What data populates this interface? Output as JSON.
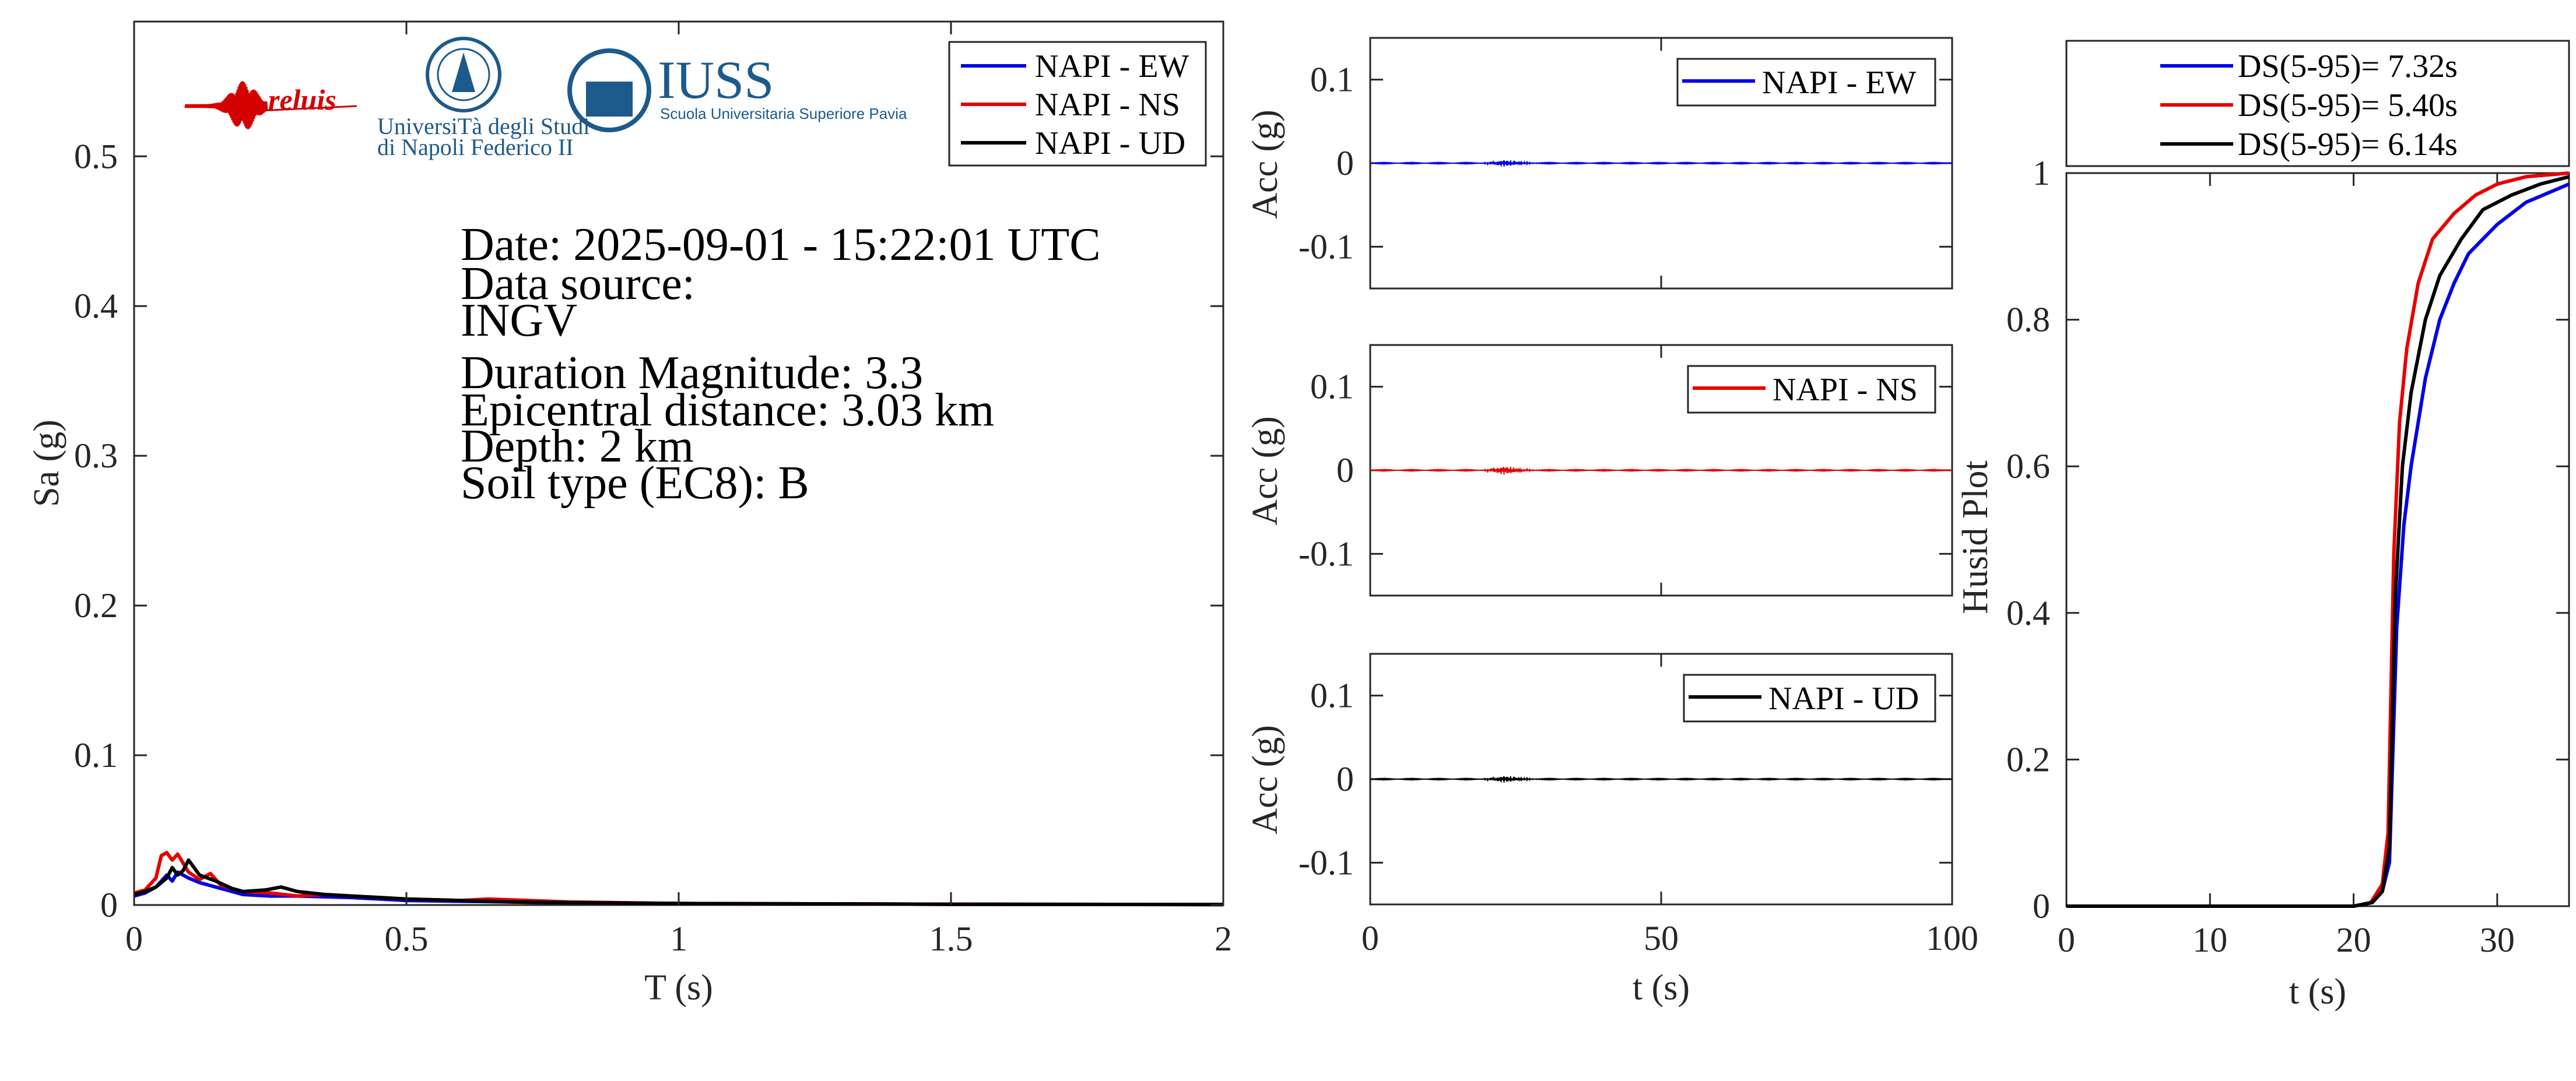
{
  "colors": {
    "ew": "#0000e6",
    "ns": "#e60000",
    "ud": "#000000",
    "axis": "#262626",
    "logo_blue": "#1d5a8c",
    "logo_red": "#d40000"
  },
  "logos": {
    "reluis": "reluis",
    "unina_line1": "UniversiTà degli Studi",
    "unina_line2": "di Napoli Federico II",
    "iuss_title": "IUSS",
    "iuss_sub": "Scuola Universitaria Superiore Pavia"
  },
  "info": {
    "date": "Date: 2025-09-01 - 15:22:01 UTC",
    "source_label": "Data source:",
    "source": "INGV",
    "magnitude": "Duration Magnitude: 3.3",
    "distance": "Epicentral distance: 3.03 km",
    "depth": "Depth: 2 km",
    "soil": "Soil type (EC8): B"
  },
  "chart_data": [
    {
      "type": "line",
      "name": "spectrum",
      "xlabel": "T (s)",
      "ylabel": "Sa (g)",
      "xlim": [
        0,
        2
      ],
      "ylim": [
        0,
        0.59
      ],
      "xticks": [
        0,
        0.5,
        1,
        1.5,
        2
      ],
      "xticklabels": [
        "0",
        "0.5",
        "1",
        "1.5",
        "2"
      ],
      "yticks": [
        0,
        0.1,
        0.2,
        0.3,
        0.4,
        0.5
      ],
      "yticklabels": [
        "0",
        "0.1",
        "0.2",
        "0.3",
        "0.4",
        "0.5"
      ],
      "legend": "top-right",
      "series": [
        {
          "name": "NAPI - EW",
          "color": "ew",
          "x": [
            0,
            0.02,
            0.04,
            0.06,
            0.07,
            0.08,
            0.1,
            0.12,
            0.15,
            0.18,
            0.2,
            0.25,
            0.3,
            0.4,
            0.5,
            0.7,
            1,
            1.5,
            2
          ],
          "y": [
            0.006,
            0.008,
            0.012,
            0.02,
            0.016,
            0.022,
            0.018,
            0.015,
            0.012,
            0.009,
            0.007,
            0.006,
            0.006,
            0.005,
            0.003,
            0.002,
            0.001,
            0.0005,
            0.0003
          ]
        },
        {
          "name": "NAPI - NS",
          "color": "ns",
          "x": [
            0,
            0.02,
            0.04,
            0.05,
            0.06,
            0.07,
            0.08,
            0.1,
            0.12,
            0.14,
            0.16,
            0.2,
            0.25,
            0.3,
            0.35,
            0.4,
            0.5,
            0.6,
            0.65,
            0.8,
            1,
            1.5,
            2
          ],
          "y": [
            0.008,
            0.01,
            0.018,
            0.033,
            0.035,
            0.03,
            0.034,
            0.022,
            0.017,
            0.021,
            0.013,
            0.009,
            0.008,
            0.006,
            0.007,
            0.006,
            0.004,
            0.003,
            0.004,
            0.002,
            0.001,
            0.0005,
            0.0003
          ]
        },
        {
          "name": "NAPI - UD",
          "color": "ud",
          "x": [
            0,
            0.02,
            0.04,
            0.06,
            0.07,
            0.08,
            0.09,
            0.1,
            0.12,
            0.15,
            0.18,
            0.2,
            0.24,
            0.27,
            0.3,
            0.35,
            0.4,
            0.5,
            0.7,
            1,
            1.5,
            2
          ],
          "y": [
            0.007,
            0.009,
            0.012,
            0.018,
            0.025,
            0.02,
            0.023,
            0.03,
            0.02,
            0.016,
            0.011,
            0.009,
            0.01,
            0.012,
            0.009,
            0.007,
            0.006,
            0.004,
            0.002,
            0.001,
            0.0005,
            0.0003
          ]
        }
      ]
    },
    {
      "type": "line",
      "name": "acc-ew",
      "ylabel": "Acc (g)",
      "xlim": [
        0,
        100
      ],
      "ylim": [
        -0.15,
        0.15
      ],
      "yticks": [
        -0.1,
        0,
        0.1
      ],
      "yticklabels": [
        "-0.1",
        "0",
        "0.1"
      ],
      "legend": "top-right",
      "series": [
        {
          "name": "NAPI - EW",
          "color": "ew",
          "burst_center": 23,
          "burst_amp": 0.004
        }
      ]
    },
    {
      "type": "line",
      "name": "acc-ns",
      "ylabel": "Acc (g)",
      "xlim": [
        0,
        100
      ],
      "ylim": [
        -0.15,
        0.15
      ],
      "yticks": [
        -0.1,
        0,
        0.1
      ],
      "yticklabels": [
        "-0.1",
        "0",
        "0.1"
      ],
      "legend": "top-right",
      "series": [
        {
          "name": "NAPI - NS",
          "color": "ns",
          "burst_center": 23,
          "burst_amp": 0.005
        }
      ]
    },
    {
      "type": "line",
      "name": "acc-ud",
      "xlabel": "t (s)",
      "ylabel": "Acc (g)",
      "xlim": [
        0,
        100
      ],
      "ylim": [
        -0.15,
        0.15
      ],
      "xticks": [
        0,
        50,
        100
      ],
      "xticklabels": [
        "0",
        "50",
        "100"
      ],
      "yticks": [
        -0.1,
        0,
        0.1
      ],
      "yticklabels": [
        "-0.1",
        "0",
        "0.1"
      ],
      "legend": "top-right",
      "series": [
        {
          "name": "NAPI - UD",
          "color": "ud",
          "burst_center": 23,
          "burst_amp": 0.004
        }
      ]
    },
    {
      "type": "line",
      "name": "husid",
      "xlabel": "t (s)",
      "ylabel": "Husid Plot",
      "xlim": [
        0,
        35
      ],
      "ylim": [
        0,
        1
      ],
      "xticks": [
        0,
        10,
        20,
        30
      ],
      "xticklabels": [
        "0",
        "10",
        "20",
        "30"
      ],
      "yticks": [
        0,
        0.2,
        0.4,
        0.6,
        0.8,
        1
      ],
      "yticklabels": [
        "0",
        "0.2",
        "0.4",
        "0.6",
        "0.8",
        "1"
      ],
      "legend": "top",
      "series": [
        {
          "name": "DS(5-95)= 7.32s",
          "color": "ew",
          "x": [
            0,
            20,
            21.3,
            22,
            22.5,
            23,
            23.5,
            24,
            25,
            26,
            27,
            28,
            30,
            32,
            35
          ],
          "y": [
            0,
            0,
            0.005,
            0.02,
            0.06,
            0.38,
            0.52,
            0.6,
            0.72,
            0.8,
            0.85,
            0.89,
            0.93,
            0.96,
            0.985
          ]
        },
        {
          "name": "DS(5-95)= 5.40s",
          "color": "ns",
          "x": [
            0,
            20,
            21.2,
            22,
            22.4,
            22.8,
            23.2,
            23.7,
            24.5,
            25.5,
            27,
            28.5,
            30,
            32,
            35
          ],
          "y": [
            0,
            0,
            0.005,
            0.03,
            0.1,
            0.48,
            0.66,
            0.76,
            0.85,
            0.91,
            0.945,
            0.97,
            0.985,
            0.995,
            1
          ]
        },
        {
          "name": "DS(5-95)= 6.14s",
          "color": "ud",
          "x": [
            0,
            20,
            21.3,
            22,
            22.5,
            22.9,
            23.4,
            24,
            25,
            26,
            27.5,
            29,
            31,
            33,
            35
          ],
          "y": [
            0,
            0,
            0.005,
            0.02,
            0.08,
            0.42,
            0.6,
            0.7,
            0.8,
            0.86,
            0.91,
            0.95,
            0.97,
            0.985,
            0.995
          ]
        }
      ]
    }
  ]
}
